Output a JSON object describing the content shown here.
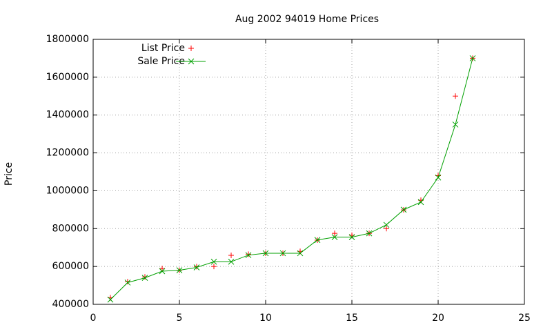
{
  "chart_data": {
    "type": "scatter-line",
    "title": "Aug 2002 94019 Home Prices",
    "y_label": "Price",
    "x": [
      1,
      2,
      3,
      4,
      5,
      6,
      7,
      8,
      9,
      10,
      11,
      12,
      13,
      14,
      15,
      16,
      17,
      18,
      19,
      20,
      21,
      22
    ],
    "series": [
      {
        "name": "List Price",
        "color": "#ff0000",
        "style": "points",
        "marker": "plus",
        "values": [
          435000,
          520000,
          545000,
          589000,
          580000,
          599000,
          600000,
          659000,
          665000,
          670000,
          670000,
          680000,
          739000,
          775000,
          765000,
          775000,
          800000,
          899000,
          950000,
          1080000,
          1500000,
          1700000
        ]
      },
      {
        "name": "Sale Price",
        "color": "#00a000",
        "style": "linespoints",
        "marker": "cross",
        "values": [
          425000,
          515000,
          540000,
          575000,
          580000,
          595000,
          625000,
          625000,
          660000,
          670000,
          670000,
          670000,
          740000,
          755000,
          755000,
          775000,
          820000,
          900000,
          940000,
          1070000,
          1350000,
          1700000
        ]
      }
    ],
    "xlim": [
      0,
      25
    ],
    "xticks": [
      0,
      5,
      10,
      15,
      20,
      25
    ],
    "ylim": [
      400000,
      1800000
    ],
    "yticks": [
      400000,
      600000,
      800000,
      1000000,
      1200000,
      1400000,
      1600000,
      1800000
    ],
    "grid": true,
    "legend": "top-left"
  }
}
